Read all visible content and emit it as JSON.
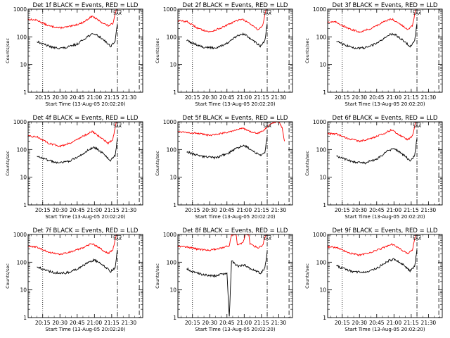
{
  "chart_data": {
    "type": "line",
    "yscale": "log",
    "ylim": [
      1,
      1000
    ],
    "yticks": [
      {
        "v": 1,
        "label": "1"
      },
      {
        "v": 10,
        "label": "10"
      },
      {
        "v": 100,
        "label": "100"
      },
      {
        "v": 1000,
        "label": "1000"
      }
    ],
    "xlim": [
      "20:02:20",
      "21:42"
    ],
    "xticks": [
      "20:15",
      "20:30",
      "20:45",
      "21:00",
      "21:15",
      "21:30"
    ],
    "xlabel": "Start Time (13-Aug-05 20:02:20)",
    "ylabel": "Counts/sec",
    "series_legend": {
      "events": "BLACK = Events",
      "lld": "RED = LLD"
    },
    "series_colors": {
      "events": "#000000",
      "lld": "#ff0000"
    },
    "markers": {
      "dotted_at": "20:15",
      "dashdot_at": "21:20",
      "dashed_at": "21:39",
      "annotation_at": "21:20",
      "annotation_label": "SAA"
    },
    "panels": [
      {
        "title": "Det 1f BLACK = Events, RED = LLD",
        "lld": [
          [
            "20:02",
            430
          ],
          [
            "20:10",
            400
          ],
          [
            "20:20",
            250
          ],
          [
            "20:30",
            210
          ],
          [
            "20:40",
            240
          ],
          [
            "20:50",
            330
          ],
          [
            "20:58",
            560
          ],
          [
            "21:05",
            360
          ],
          [
            "21:12",
            250
          ],
          [
            "21:16",
            300
          ],
          [
            "21:19",
            1000
          ]
        ],
        "events": [
          [
            "20:10",
            70
          ],
          [
            "20:15",
            55
          ],
          [
            "20:25",
            40
          ],
          [
            "20:35",
            40
          ],
          [
            "20:45",
            55
          ],
          [
            "20:55",
            110
          ],
          [
            "21:00",
            130
          ],
          [
            "21:08",
            80
          ],
          [
            "21:14",
            45
          ],
          [
            "21:18",
            70
          ],
          [
            "21:20",
            300
          ]
        ]
      },
      {
        "title": "Det 2f BLACK = Events, RED = LLD",
        "lld": [
          [
            "20:02",
            380
          ],
          [
            "20:10",
            360
          ],
          [
            "20:20",
            200
          ],
          [
            "20:30",
            150
          ],
          [
            "20:40",
            210
          ],
          [
            "20:50",
            330
          ],
          [
            "20:58",
            450
          ],
          [
            "21:05",
            300
          ],
          [
            "21:12",
            180
          ],
          [
            "21:16",
            250
          ],
          [
            "21:19",
            1000
          ]
        ],
        "events": [
          [
            "20:10",
            75
          ],
          [
            "20:15",
            60
          ],
          [
            "20:25",
            42
          ],
          [
            "20:35",
            40
          ],
          [
            "20:45",
            58
          ],
          [
            "20:55",
            115
          ],
          [
            "21:00",
            125
          ],
          [
            "21:08",
            75
          ],
          [
            "21:14",
            45
          ],
          [
            "21:18",
            70
          ],
          [
            "21:20",
            300
          ]
        ]
      },
      {
        "title": "Det 3f BLACK = Events, RED = LLD",
        "lld": [
          [
            "20:02",
            350
          ],
          [
            "20:10",
            340
          ],
          [
            "20:20",
            200
          ],
          [
            "20:30",
            150
          ],
          [
            "20:40",
            200
          ],
          [
            "20:50",
            330
          ],
          [
            "20:58",
            450
          ],
          [
            "21:05",
            300
          ],
          [
            "21:12",
            180
          ],
          [
            "21:16",
            250
          ],
          [
            "21:19",
            1000
          ]
        ],
        "events": [
          [
            "20:10",
            70
          ],
          [
            "20:15",
            55
          ],
          [
            "20:25",
            40
          ],
          [
            "20:35",
            40
          ],
          [
            "20:45",
            58
          ],
          [
            "20:55",
            115
          ],
          [
            "21:00",
            130
          ],
          [
            "21:08",
            75
          ],
          [
            "21:14",
            45
          ],
          [
            "21:18",
            70
          ],
          [
            "21:20",
            300
          ]
        ]
      },
      {
        "title": "Det 4f BLACK = Events, RED = LLD",
        "lld": [
          [
            "20:02",
            300
          ],
          [
            "20:10",
            290
          ],
          [
            "20:20",
            170
          ],
          [
            "20:30",
            130
          ],
          [
            "20:40",
            180
          ],
          [
            "20:50",
            300
          ],
          [
            "20:58",
            450
          ],
          [
            "21:05",
            280
          ],
          [
            "21:12",
            170
          ],
          [
            "21:16",
            230
          ],
          [
            "21:19",
            1000
          ]
        ],
        "events": [
          [
            "20:10",
            60
          ],
          [
            "20:15",
            48
          ],
          [
            "20:25",
            35
          ],
          [
            "20:35",
            35
          ],
          [
            "20:45",
            50
          ],
          [
            "20:55",
            100
          ],
          [
            "21:00",
            120
          ],
          [
            "21:08",
            70
          ],
          [
            "21:14",
            40
          ],
          [
            "21:18",
            60
          ],
          [
            "21:20",
            250
          ]
        ]
      },
      {
        "title": "Det 5f BLACK = Events, RED = LLD",
        "lld": [
          [
            "20:02",
            450
          ],
          [
            "20:10",
            420
          ],
          [
            "20:20",
            380
          ],
          [
            "20:30",
            320
          ],
          [
            "20:40",
            380
          ],
          [
            "20:50",
            470
          ],
          [
            "20:58",
            600
          ],
          [
            "21:05",
            450
          ],
          [
            "21:12",
            380
          ],
          [
            "21:17",
            500
          ],
          [
            "21:24",
            900
          ],
          [
            "21:30",
            1000
          ],
          [
            "21:33",
            600
          ],
          [
            "21:35",
            200
          ]
        ],
        "events": [
          [
            "20:10",
            85
          ],
          [
            "20:15",
            70
          ],
          [
            "20:25",
            55
          ],
          [
            "20:35",
            50
          ],
          [
            "20:45",
            70
          ],
          [
            "20:55",
            120
          ],
          [
            "21:00",
            140
          ],
          [
            "21:08",
            90
          ],
          [
            "21:14",
            60
          ],
          [
            "21:18",
            80
          ],
          [
            "21:20",
            300
          ]
        ]
      },
      {
        "title": "Det 6f BLACK = Events, RED = LLD",
        "lld": [
          [
            "20:02",
            380
          ],
          [
            "20:10",
            360
          ],
          [
            "20:20",
            250
          ],
          [
            "20:30",
            200
          ],
          [
            "20:40",
            250
          ],
          [
            "20:50",
            360
          ],
          [
            "20:58",
            520
          ],
          [
            "21:05",
            330
          ],
          [
            "21:12",
            230
          ],
          [
            "21:16",
            300
          ],
          [
            "21:19",
            1000
          ]
        ],
        "events": [
          [
            "20:10",
            60
          ],
          [
            "20:15",
            48
          ],
          [
            "20:25",
            35
          ],
          [
            "20:35",
            33
          ],
          [
            "20:45",
            45
          ],
          [
            "20:55",
            90
          ],
          [
            "21:00",
            110
          ],
          [
            "21:08",
            65
          ],
          [
            "21:14",
            40
          ],
          [
            "21:18",
            60
          ],
          [
            "21:20",
            250
          ]
        ]
      },
      {
        "title": "Det 7f BLACK = Events, RED = LLD",
        "lld": [
          [
            "20:02",
            370
          ],
          [
            "20:10",
            350
          ],
          [
            "20:20",
            230
          ],
          [
            "20:30",
            190
          ],
          [
            "20:40",
            240
          ],
          [
            "20:50",
            330
          ],
          [
            "20:58",
            480
          ],
          [
            "21:05",
            310
          ],
          [
            "21:12",
            210
          ],
          [
            "21:16",
            280
          ],
          [
            "21:19",
            1000
          ]
        ],
        "events": [
          [
            "20:10",
            70
          ],
          [
            "20:15",
            55
          ],
          [
            "20:25",
            42
          ],
          [
            "20:35",
            40
          ],
          [
            "20:45",
            55
          ],
          [
            "20:55",
            100
          ],
          [
            "21:00",
            120
          ],
          [
            "21:08",
            75
          ],
          [
            "21:14",
            45
          ],
          [
            "21:18",
            65
          ],
          [
            "21:20",
            280
          ]
        ]
      },
      {
        "title": "Det 8f BLACK = Events, RED = LLD",
        "lld": [
          [
            "20:02",
            380
          ],
          [
            "20:10",
            360
          ],
          [
            "20:20",
            290
          ],
          [
            "20:30",
            270
          ],
          [
            "20:40",
            320
          ],
          [
            "20:47",
            400
          ],
          [
            "20:49",
            1000
          ],
          [
            "20:53",
            1000
          ],
          [
            "20:54",
            420
          ],
          [
            "20:59",
            500
          ],
          [
            "21:01",
            1000
          ],
          [
            "21:04",
            1000
          ],
          [
            "21:05",
            450
          ],
          [
            "21:12",
            330
          ],
          [
            "21:16",
            400
          ],
          [
            "21:19",
            1000
          ]
        ],
        "events": [
          [
            "20:10",
            60
          ],
          [
            "20:15",
            45
          ],
          [
            "20:25",
            35
          ],
          [
            "20:35",
            32
          ],
          [
            "20:45",
            40
          ],
          [
            "20:47",
            1
          ],
          [
            "20:49",
            110
          ],
          [
            "20:55",
            70
          ],
          [
            "21:00",
            80
          ],
          [
            "21:05",
            60
          ],
          [
            "21:14",
            40
          ],
          [
            "21:18",
            60
          ],
          [
            "21:20",
            250
          ]
        ]
      },
      {
        "title": "Det 9f BLACK = Events, RED = LLD",
        "lld": [
          [
            "20:02",
            360
          ],
          [
            "20:10",
            340
          ],
          [
            "20:20",
            220
          ],
          [
            "20:30",
            180
          ],
          [
            "20:40",
            230
          ],
          [
            "20:50",
            320
          ],
          [
            "20:58",
            460
          ],
          [
            "21:05",
            300
          ],
          [
            "21:12",
            200
          ],
          [
            "21:16",
            270
          ],
          [
            "21:19",
            1000
          ]
        ],
        "events": [
          [
            "20:10",
            75
          ],
          [
            "20:15",
            60
          ],
          [
            "20:25",
            45
          ],
          [
            "20:35",
            42
          ],
          [
            "20:45",
            60
          ],
          [
            "20:55",
            110
          ],
          [
            "21:00",
            130
          ],
          [
            "21:08",
            80
          ],
          [
            "21:14",
            48
          ],
          [
            "21:18",
            70
          ],
          [
            "21:20",
            300
          ]
        ]
      }
    ]
  }
}
